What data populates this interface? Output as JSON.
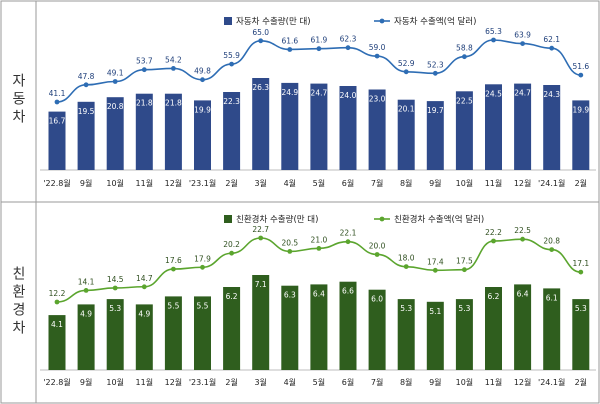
{
  "chart_data": [
    {
      "type": "bar",
      "row_label": "자동차",
      "categories": [
        "'22.8월",
        "9월",
        "10월",
        "11월",
        "12월",
        "'23.1월",
        "2월",
        "3월",
        "4월",
        "5월",
        "6월",
        "7월",
        "8월",
        "9월",
        "10월",
        "11월",
        "12월",
        "'24.1월",
        "2월"
      ],
      "series": [
        {
          "name": "자동차 수출량(만 대)",
          "type": "bar",
          "color": "#2F4A8A",
          "values": [
            16.7,
            19.5,
            20.8,
            21.8,
            21.8,
            19.9,
            22.3,
            26.3,
            24.9,
            24.7,
            24.0,
            23.0,
            20.1,
            19.7,
            22.5,
            24.5,
            24.7,
            24.3,
            19.9
          ]
        },
        {
          "name": "자동차 수출액(억 달러)",
          "type": "line",
          "color": "#2E6DB4",
          "values": [
            41.1,
            47.8,
            49.1,
            53.7,
            54.2,
            49.8,
            55.9,
            65.0,
            61.6,
            61.9,
            62.3,
            59.0,
            52.9,
            52.3,
            58.8,
            65.3,
            63.9,
            62.1,
            51.6
          ]
        }
      ],
      "legend": "top-right",
      "grid": false
    },
    {
      "type": "bar",
      "row_label": "친환경차",
      "categories": [
        "'22.8월",
        "9월",
        "10월",
        "11월",
        "12월",
        "'23.1월",
        "2월",
        "3월",
        "4월",
        "5월",
        "6월",
        "7월",
        "8월",
        "9월",
        "10월",
        "11월",
        "12월",
        "'24.1월",
        "2월"
      ],
      "series": [
        {
          "name": "친환경차 수출량(만 대)",
          "type": "bar",
          "color": "#2F5E1E",
          "values": [
            4.1,
            4.9,
            5.3,
            4.9,
            5.5,
            5.5,
            6.2,
            7.1,
            6.3,
            6.4,
            6.6,
            6.0,
            5.3,
            5.1,
            5.3,
            6.2,
            6.4,
            6.1,
            5.3
          ]
        },
        {
          "name": "친환경차 수출액(억 달러)",
          "type": "line",
          "color": "#5BA52E",
          "values": [
            12.2,
            14.1,
            14.5,
            14.7,
            17.6,
            17.9,
            20.2,
            22.7,
            20.5,
            21.0,
            22.1,
            20.0,
            18.0,
            17.4,
            17.5,
            22.2,
            22.5,
            20.8,
            17.1
          ]
        }
      ],
      "legend": "top-right",
      "grid": false
    }
  ]
}
